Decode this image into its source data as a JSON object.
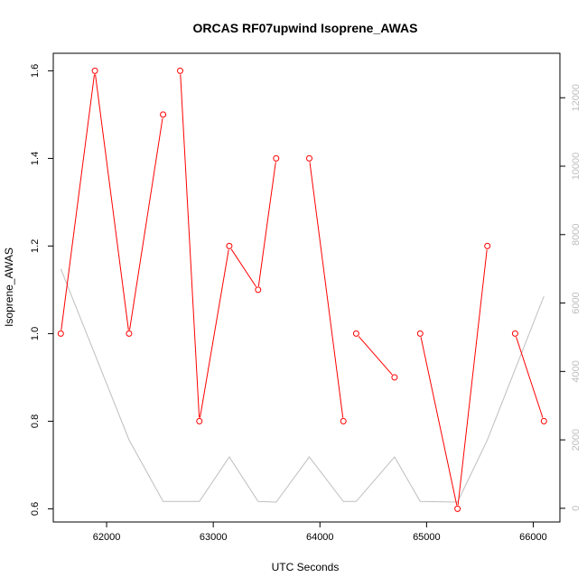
{
  "chart_data": {
    "type": "line",
    "title": "ORCAS RF07upwind Isoprene_AWAS",
    "xlabel": "UTC Seconds",
    "ylabel": "Isoprene_AWAS",
    "xlim": [
      61500,
      66250
    ],
    "ylim": [
      0.57,
      1.64
    ],
    "y2lim": [
      -400,
      13300
    ],
    "x_ticks": [
      62000,
      63000,
      64000,
      65000,
      66000
    ],
    "y_ticks": [
      0.6,
      0.8,
      1.0,
      1.2,
      1.4,
      1.6
    ],
    "y2_ticks": [
      0,
      2000,
      4000,
      6000,
      8000,
      10000,
      12000
    ],
    "grid": false,
    "colors": {
      "primary": "#ff0000",
      "secondary": "#bebebe",
      "axis": "#000000"
    },
    "series": [
      {
        "axis": "left",
        "color": "#ff0000",
        "marker": "open-circle",
        "x": [
          61570,
          61890,
          62210,
          62530,
          62690,
          62870,
          63150,
          63420,
          63590,
          63900,
          64220,
          64340,
          64700,
          64940,
          65290,
          65570,
          65830,
          66100
        ],
        "y": [
          1.0,
          1.6,
          1.0,
          1.5,
          1.6,
          0.8,
          1.2,
          1.1,
          1.4,
          1.4,
          0.8,
          1.0,
          0.9,
          1.0,
          0.6,
          1.2,
          1.0,
          0.8
        ],
        "connected": [
          true,
          true,
          true,
          false,
          true,
          true,
          true,
          true,
          false,
          true,
          false,
          true,
          false,
          true,
          true,
          false,
          true
        ]
      },
      {
        "axis": "right",
        "color": "#bebebe",
        "x": [
          61570,
          62210,
          62530,
          62870,
          63150,
          63420,
          63590,
          63900,
          64220,
          64340,
          64700,
          64940,
          65290,
          65570,
          66100
        ],
        "y": [
          7000,
          2000,
          200,
          200,
          1500,
          200,
          180,
          1500,
          200,
          200,
          1500,
          200,
          180,
          2000,
          6200
        ]
      }
    ]
  }
}
